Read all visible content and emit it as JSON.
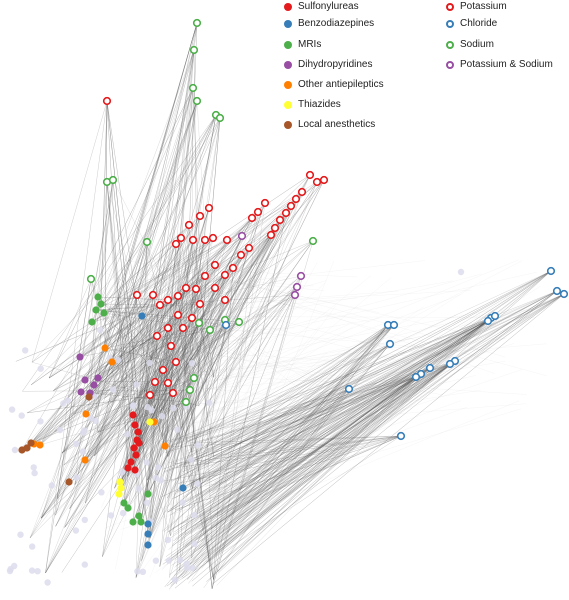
{
  "legend": {
    "drug_classes": [
      {
        "label": "Sulfonylureas",
        "color": "#e41a1c"
      },
      {
        "label": "Benzodiazepines",
        "color": "#377eb8"
      },
      {
        "label": "MRIs",
        "color": "#4daf4a"
      },
      {
        "label": "Dihydropyridines",
        "color": "#984ea3"
      },
      {
        "label": "Other antiepileptics",
        "color": "#ff7f00"
      },
      {
        "label": "Thiazides",
        "color": "#ffff33"
      },
      {
        "label": "Local anesthetics",
        "color": "#a65628"
      }
    ],
    "targets": [
      {
        "label": "Potassium",
        "color": "#e41a1c"
      },
      {
        "label": "Chloride",
        "color": "#377eb8"
      },
      {
        "label": "Sodium",
        "color": "#4daf4a"
      },
      {
        "label": "Potassium & Sodium",
        "color": "#984ea3"
      }
    ]
  }
}
